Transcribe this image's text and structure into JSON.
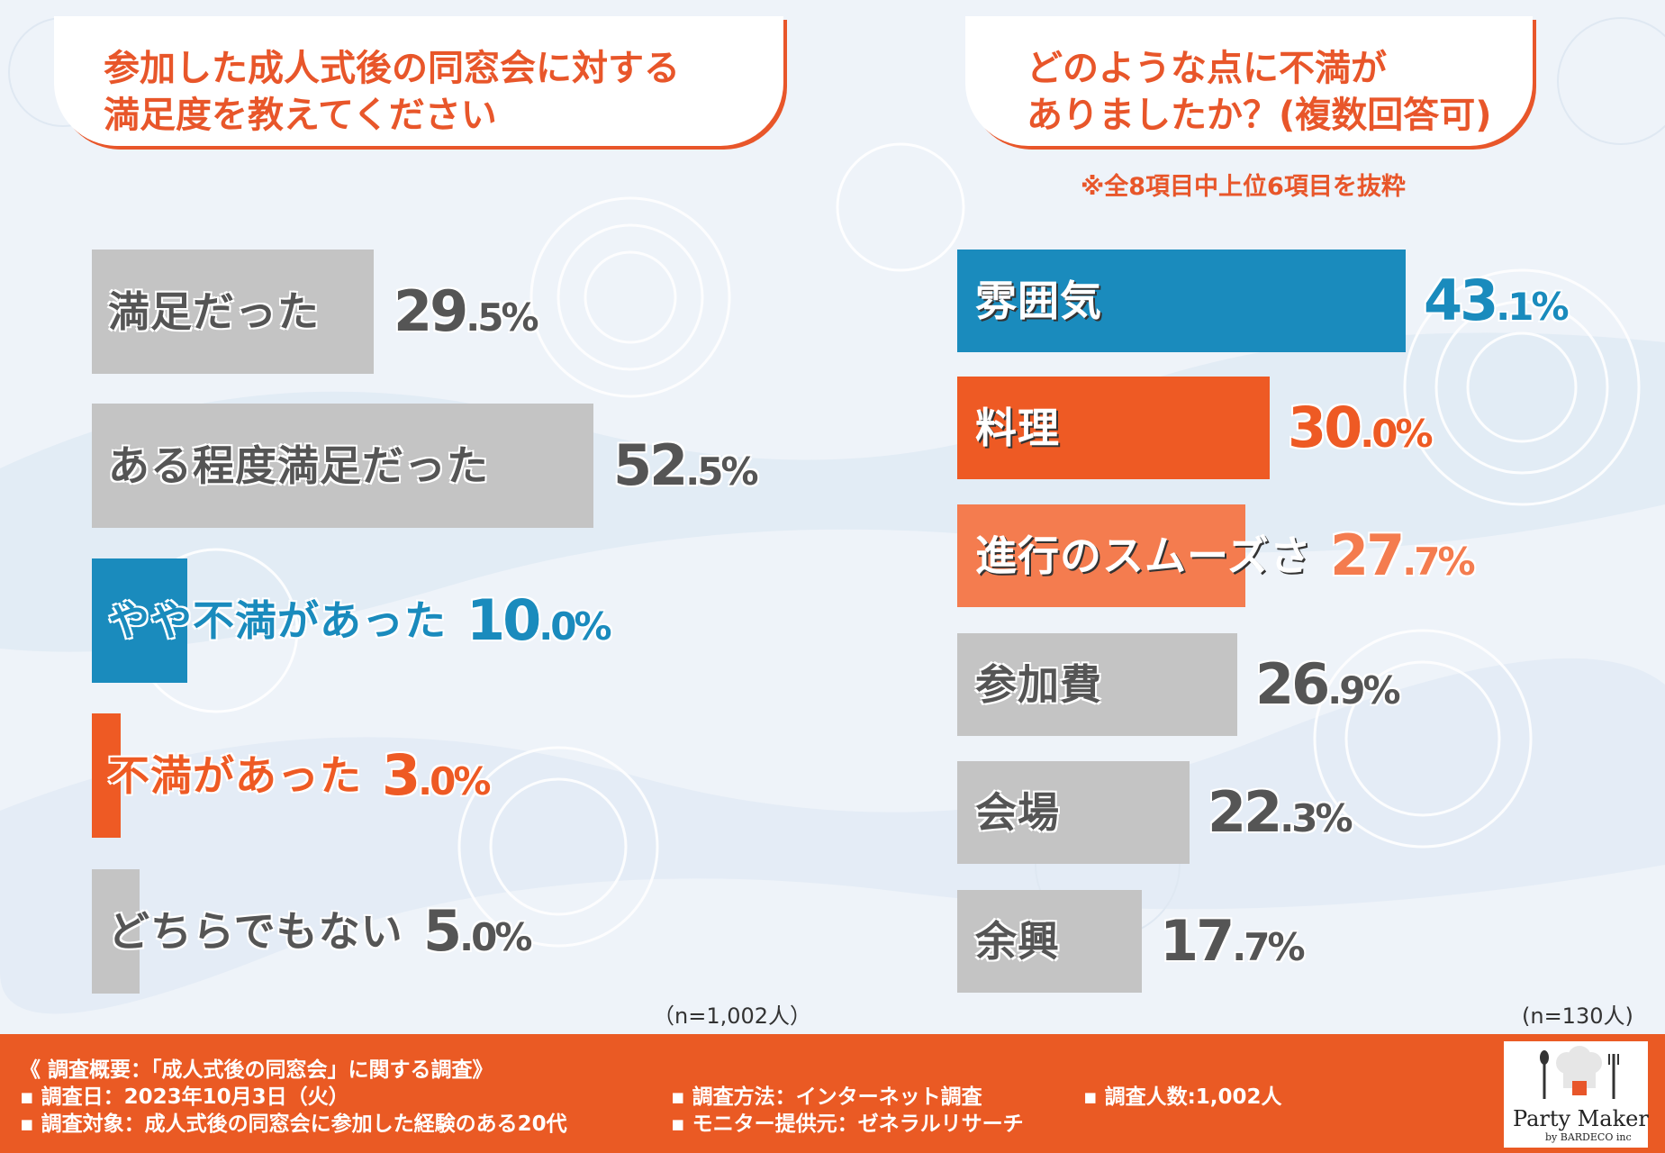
{
  "colors": {
    "orange": "#ee5a24",
    "blue": "#1a8bbd",
    "salmon": "#f47c4f",
    "gray": "#c4c4c4",
    "dark": "#555555",
    "footer": "#ea5a24"
  },
  "left_title": {
    "line1": "参加した成人式後の同窓会に対する",
    "line2": "満足度を教えてください"
  },
  "right_title": {
    "line1": "どのような点に不満が",
    "line2": "ありましたか？(複数回答可)"
  },
  "right_note": "※全8項目中上位6項目を抜粋",
  "chart_data": [
    {
      "type": "bar",
      "orientation": "horizontal",
      "title": "参加した成人式後の同窓会に対する満足度を教えてください",
      "unit": "%",
      "categories": [
        "満足だった",
        "ある程度満足だった",
        "やや不満があった",
        "不満があった",
        "どちらでもない"
      ],
      "values": [
        29.5,
        52.5,
        10.0,
        3.0,
        5.0
      ],
      "value_labels": [
        [
          "29",
          ".5%"
        ],
        [
          "52",
          ".5%"
        ],
        [
          "10",
          ".0%"
        ],
        [
          "3",
          ".0%"
        ],
        [
          "5",
          ".0%"
        ]
      ],
      "bar_colors": [
        "gray",
        "gray",
        "blue",
        "orange",
        "gray"
      ],
      "label_colors": [
        "dark",
        "dark",
        "blue",
        "orange",
        "dark"
      ],
      "value_colors": [
        "dark",
        "dark",
        "blue",
        "orange",
        "dark"
      ],
      "n_label": "（n=1,002人）"
    },
    {
      "type": "bar",
      "orientation": "horizontal",
      "title": "どのような点に不満がありましたか？(複数回答可)",
      "unit": "%",
      "categories": [
        "雰囲気",
        "料理",
        "進行のスムーズさ",
        "参加費",
        "会場",
        "余興"
      ],
      "values": [
        43.1,
        30.0,
        27.7,
        26.9,
        22.3,
        17.7
      ],
      "value_labels": [
        [
          "43",
          ".1%"
        ],
        [
          "30",
          ".0%"
        ],
        [
          "27",
          ".7%"
        ],
        [
          "26",
          ".9%"
        ],
        [
          "22",
          ".3%"
        ],
        [
          "17",
          ".7%"
        ]
      ],
      "bar_colors": [
        "blue",
        "orange",
        "salmon",
        "gray",
        "gray",
        "gray"
      ],
      "label_colors": [
        "white",
        "white",
        "white",
        "dark",
        "dark",
        "dark"
      ],
      "value_colors": [
        "blue",
        "orange",
        "salmon",
        "dark",
        "dark",
        "dark"
      ],
      "n_label": "(n=130人)"
    }
  ],
  "footer": {
    "heading": "《 調査概要：「成人式後の同窓会」に関する調査》",
    "date": "▪ 調査日：2023年10月3日（火）",
    "target": "▪ 調査対象：成人式後の同窓会に参加した経験のある20代",
    "method": "▪ 調査方法：インターネット調査",
    "provider": "▪ モニター提供元：ゼネラルリサーチ",
    "count": "▪ 調査人数:1,002人"
  },
  "logo": {
    "name": "Party Maker",
    "sub": "by BARDECO inc"
  }
}
